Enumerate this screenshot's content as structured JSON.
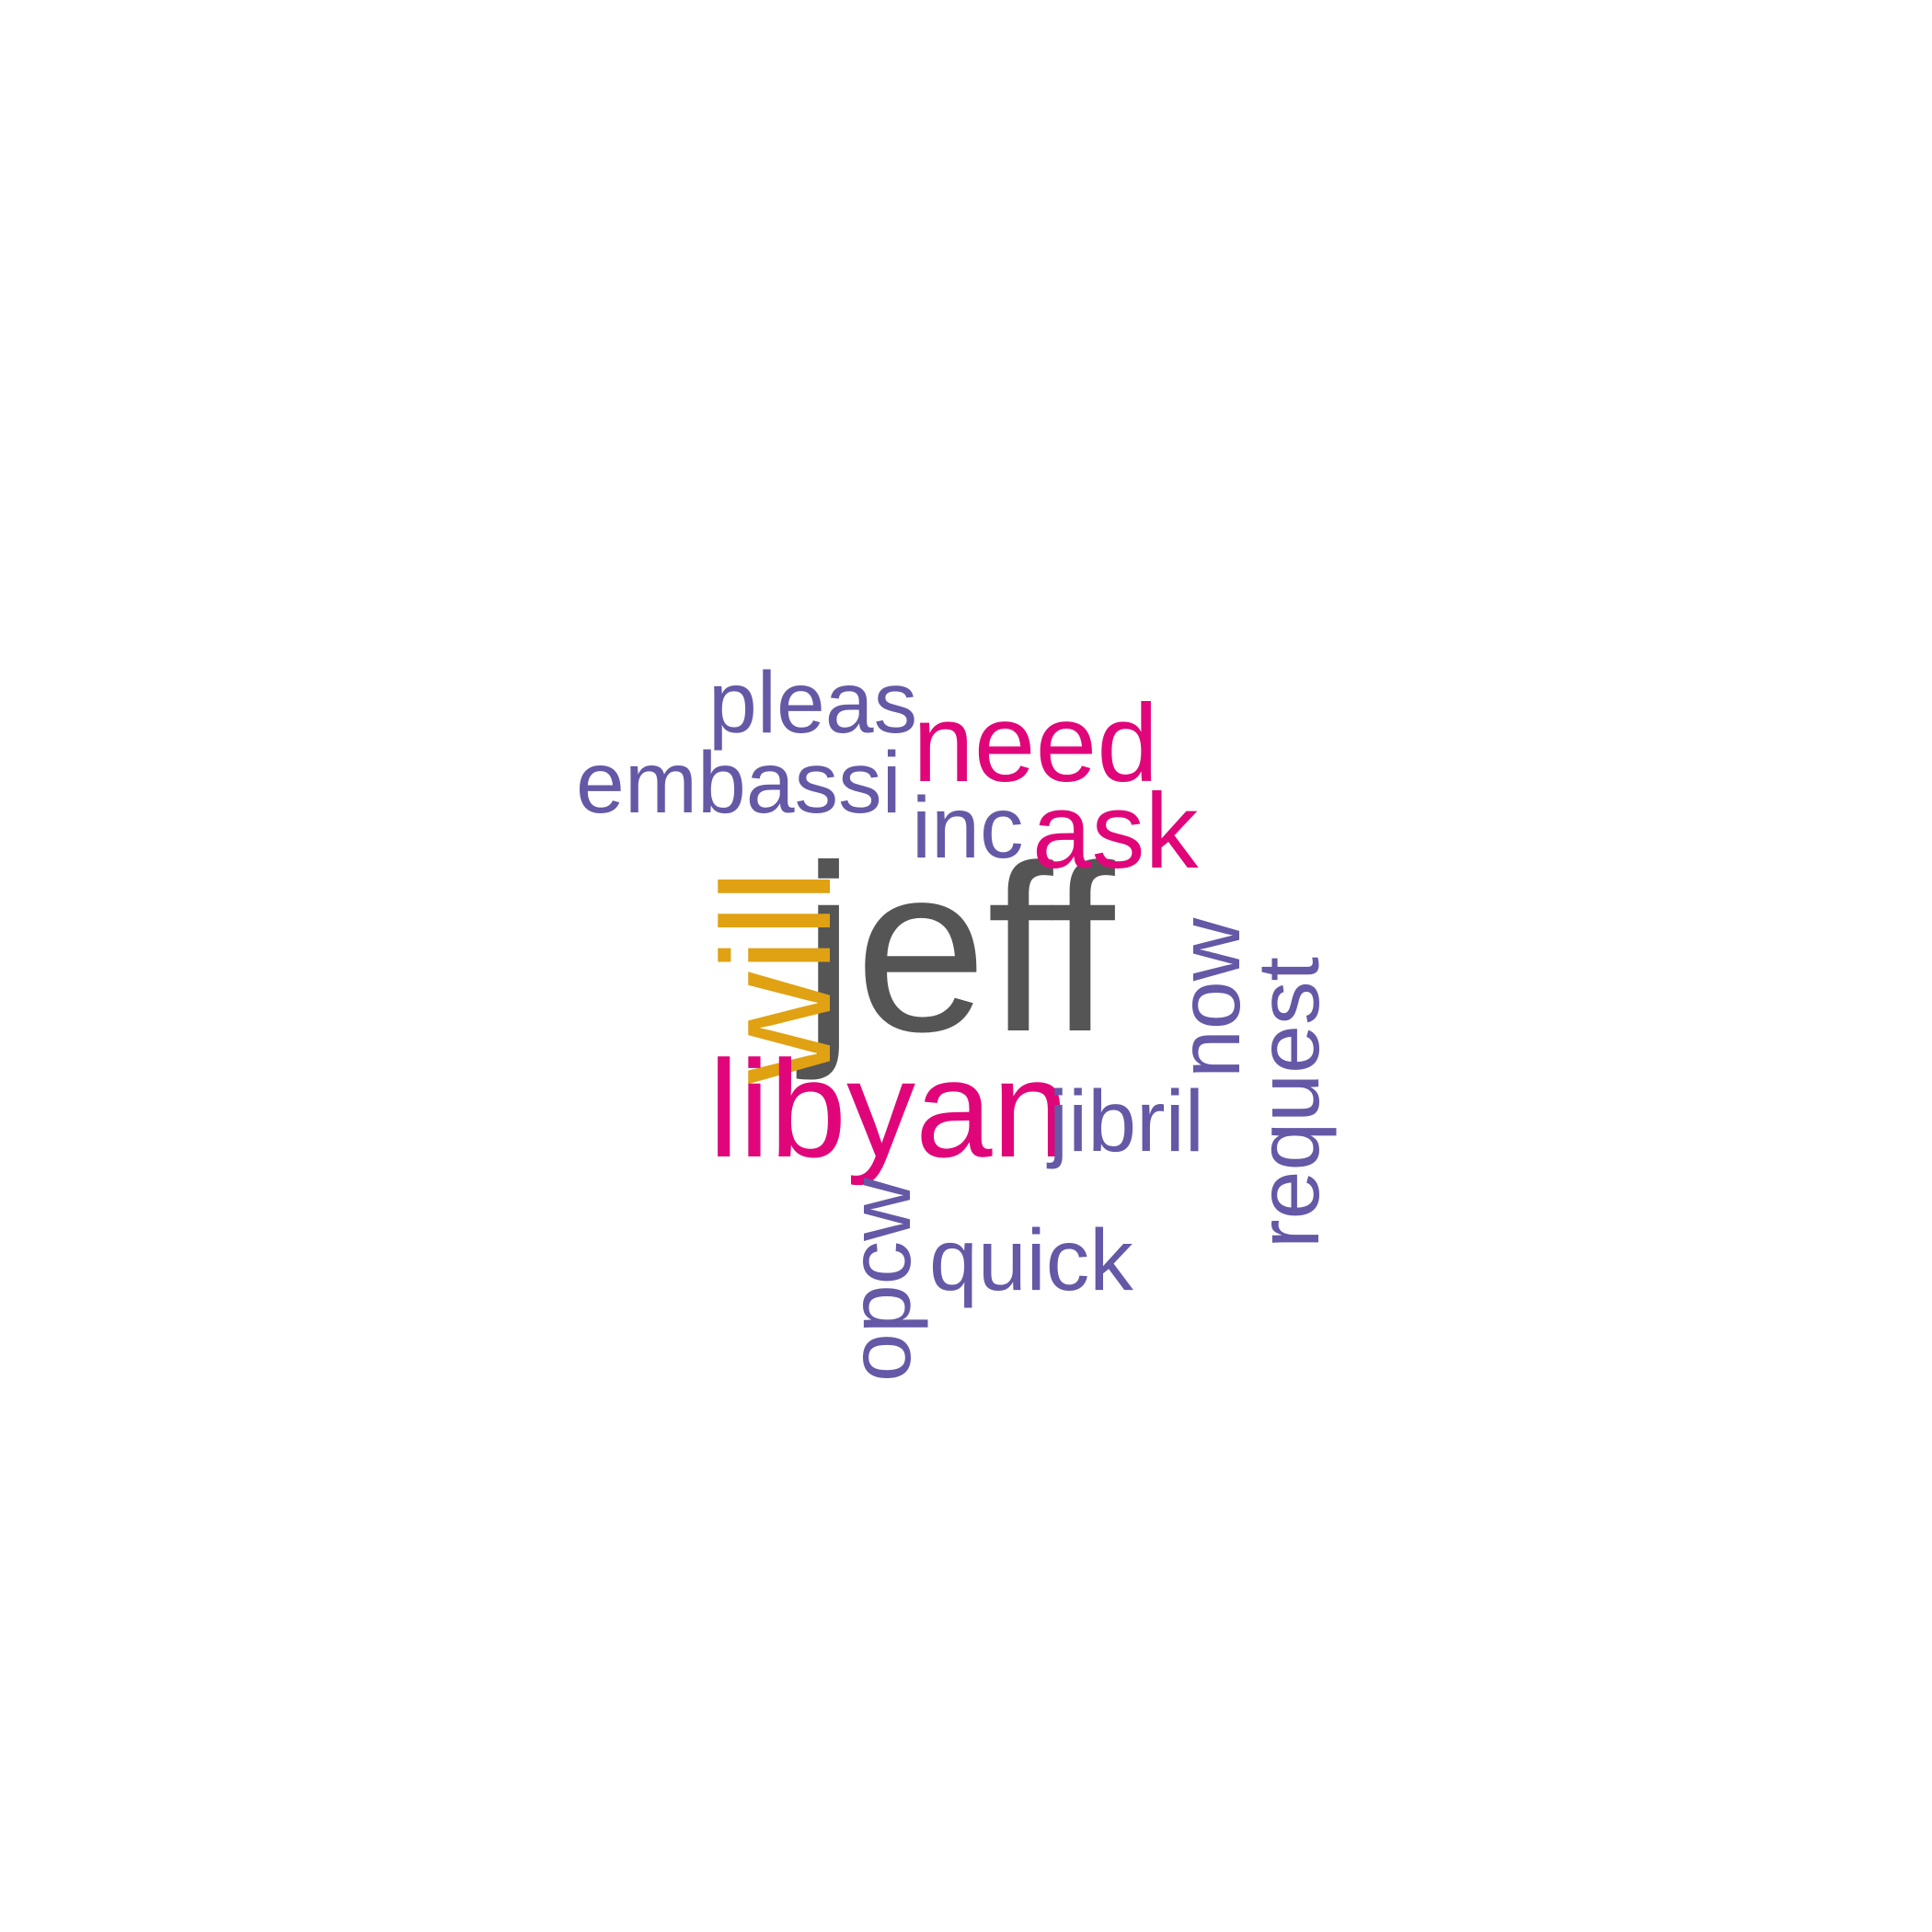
{
  "colors": {
    "dark": "#555555",
    "gold": "#e0a112",
    "magenta": "#e0067a",
    "purple": "#6558a6"
  },
  "words": [
    {
      "id": "jeff",
      "text": "jeff",
      "color": "dark"
    },
    {
      "id": "will",
      "text": "will",
      "color": "gold"
    },
    {
      "id": "libyan",
      "text": "libyan",
      "color": "magenta"
    },
    {
      "id": "need",
      "text": "need",
      "color": "magenta"
    },
    {
      "id": "ask",
      "text": "ask",
      "color": "magenta"
    },
    {
      "id": "pleas",
      "text": "pleas",
      "color": "purple"
    },
    {
      "id": "embassi",
      "text": "embassi",
      "color": "purple"
    },
    {
      "id": "inc",
      "text": "inc",
      "color": "purple"
    },
    {
      "id": "now",
      "text": "now",
      "color": "purple"
    },
    {
      "id": "request",
      "text": "request",
      "color": "purple"
    },
    {
      "id": "jibril",
      "text": "jibril",
      "color": "purple"
    },
    {
      "id": "opcw",
      "text": "opcw",
      "color": "purple"
    },
    {
      "id": "quick",
      "text": "quick",
      "color": "purple"
    }
  ]
}
